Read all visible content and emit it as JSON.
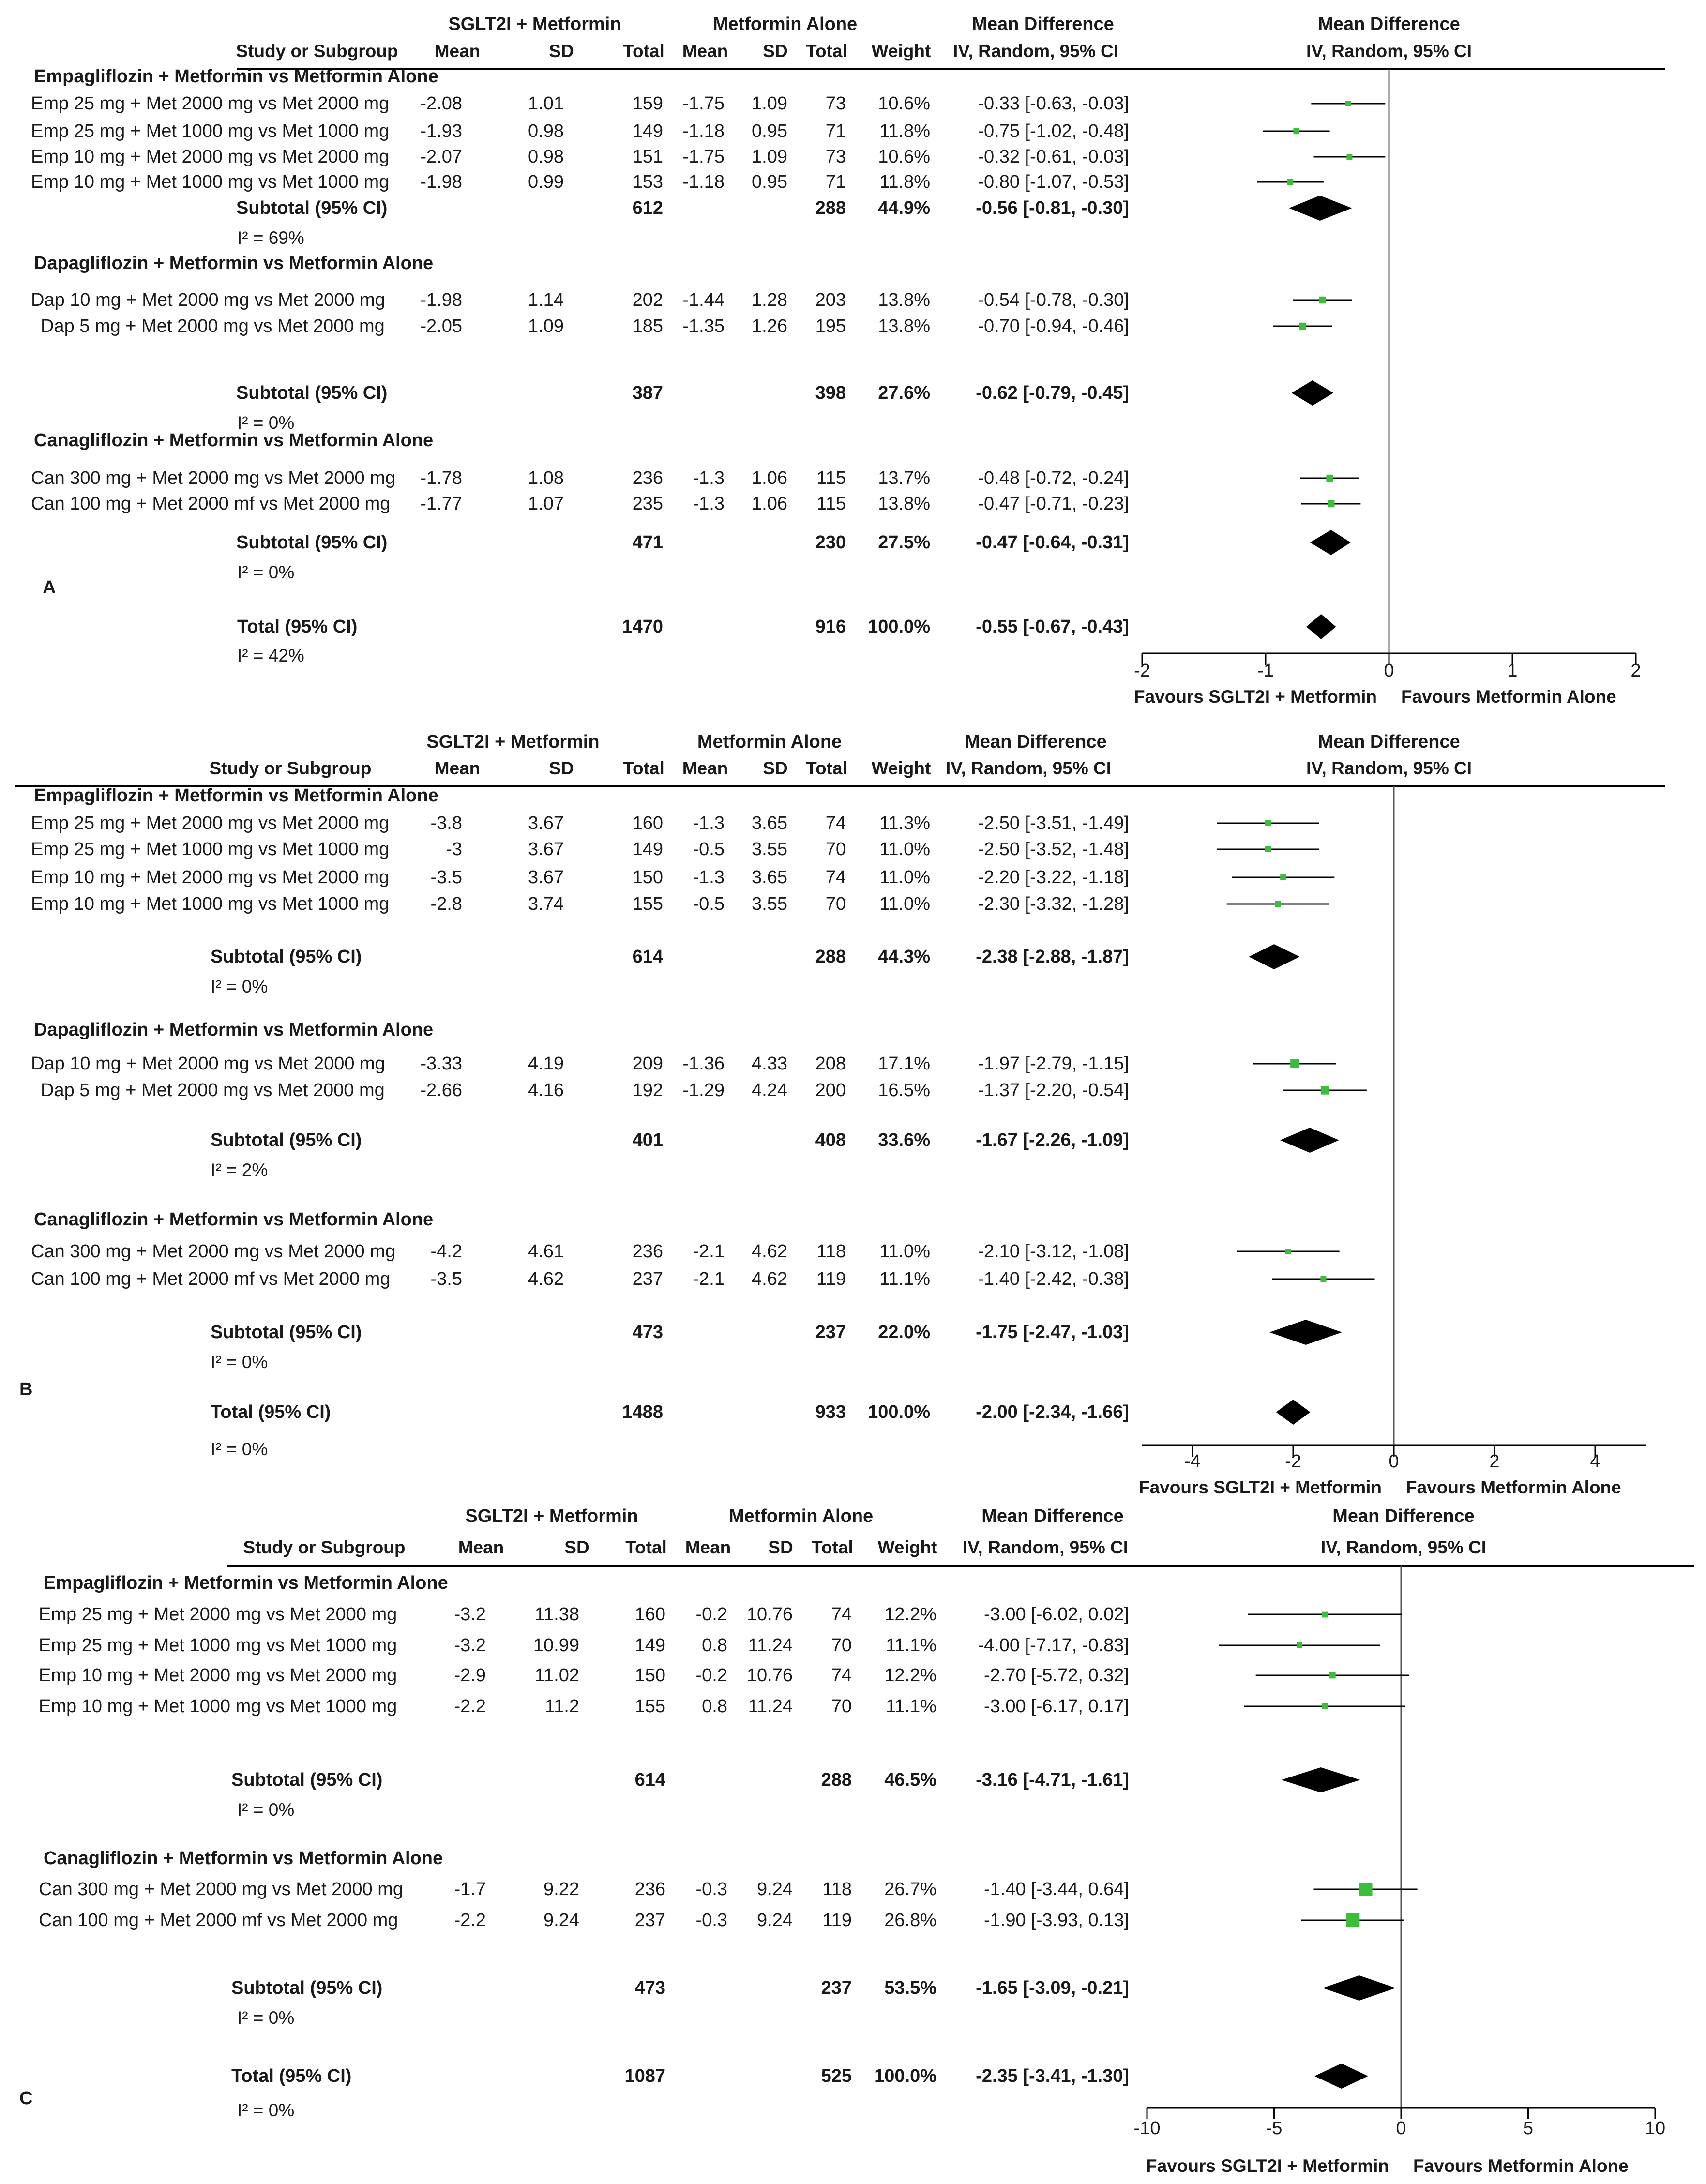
{
  "headers": {
    "group1": "SGLT2I + Metformin",
    "group2": "Metformin Alone",
    "effect": "Mean Difference",
    "method": "IV, Random, 95% CI",
    "study": "Study or Subgroup",
    "mean": "Mean",
    "sd": "SD",
    "total": "Total",
    "weight": "Weight"
  },
  "colors": {
    "marker": "#3bbf3b",
    "diamond": "#000000",
    "line": "#000000"
  },
  "chart_data": [
    {
      "type": "forest",
      "panel_label": "A",
      "xlim": [
        -2,
        2
      ],
      "ticks": [
        -2,
        -1,
        0,
        1,
        2
      ],
      "tick_labels": [
        "-2",
        "-1",
        "0",
        "1",
        "2"
      ],
      "favours_left": "Favours SGLT2I + Metformin",
      "favours_right": "Favours Metformin Alone",
      "groups": [
        {
          "title": "Empagliflozin + Metformin vs Metformin Alone",
          "studies": [
            {
              "name": "Emp 25 mg + Met 2000 mg vs Met 2000 mg",
              "m1": "-2.08",
              "sd1": "1.01",
              "n1": "159",
              "m2": "-1.75",
              "sd2": "1.09",
              "n2": "73",
              "weight": "10.6%",
              "ci": "-0.33 [-0.63, -0.03]",
              "md": -0.33,
              "lo": -0.63,
              "hi": -0.03
            },
            {
              "name": "Emp 25 mg + Met 1000 mg vs Met 1000 mg",
              "m1": "-1.93",
              "sd1": "0.98",
              "n1": "149",
              "m2": "-1.18",
              "sd2": "0.95",
              "n2": "71",
              "weight": "11.8%",
              "ci": "-0.75 [-1.02, -0.48]",
              "md": -0.75,
              "lo": -1.02,
              "hi": -0.48
            },
            {
              "name": "Emp 10 mg + Met 2000 mg vs Met 2000 mg",
              "m1": "-2.07",
              "sd1": "0.98",
              "n1": "151",
              "m2": "-1.75",
              "sd2": "1.09",
              "n2": "73",
              "weight": "10.6%",
              "ci": "-0.32 [-0.61, -0.03]",
              "md": -0.32,
              "lo": -0.61,
              "hi": -0.03
            },
            {
              "name": "Emp 10 mg + Met 1000 mg vs Met 1000 mg",
              "m1": "-1.98",
              "sd1": "0.99",
              "n1": "153",
              "m2": "-1.18",
              "sd2": "0.95",
              "n2": "71",
              "weight": "11.8%",
              "ci": "-0.80 [-1.07, -0.53]",
              "md": -0.8,
              "lo": -1.07,
              "hi": -0.53
            }
          ],
          "subtotal": {
            "label": "Subtotal (95% CI)",
            "n1": "612",
            "n2": "288",
            "weight": "44.9%",
            "ci": "-0.56 [-0.81, -0.30]",
            "md": -0.56,
            "lo": -0.81,
            "hi": -0.3,
            "i2": "I² = 69%"
          }
        },
        {
          "title": "Dapagliflozin + Metformin vs Metformin Alone",
          "studies": [
            {
              "name": "Dap 10 mg + Met 2000 mg vs Met 2000 mg",
              "m1": "-1.98",
              "sd1": "1.14",
              "n1": "202",
              "m2": "-1.44",
              "sd2": "1.28",
              "n2": "203",
              "weight": "13.8%",
              "ci": "-0.54 [-0.78, -0.30]",
              "md": -0.54,
              "lo": -0.78,
              "hi": -0.3
            },
            {
              "name": "Dap 5 mg + Met 2000 mg vs Met 2000 mg",
              "m1": "-2.05",
              "sd1": "1.09",
              "n1": "185",
              "m2": "-1.35",
              "sd2": "1.26",
              "n2": "195",
              "weight": "13.8%",
              "ci": "-0.70 [-0.94, -0.46]",
              "md": -0.7,
              "lo": -0.94,
              "hi": -0.46
            }
          ],
          "subtotal": {
            "label": "Subtotal (95% CI)",
            "n1": "387",
            "n2": "398",
            "weight": "27.6%",
            "ci": "-0.62 [-0.79, -0.45]",
            "md": -0.62,
            "lo": -0.79,
            "hi": -0.45,
            "i2": "I² = 0%"
          }
        },
        {
          "title": "Canagliflozin + Metformin vs Metformin Alone",
          "studies": [
            {
              "name": "Can 300 mg + Met 2000 mg vs Met 2000 mg",
              "m1": "-1.78",
              "sd1": "1.08",
              "n1": "236",
              "m2": "-1.3",
              "sd2": "1.06",
              "n2": "115",
              "weight": "13.7%",
              "ci": "-0.48 [-0.72, -0.24]",
              "md": -0.48,
              "lo": -0.72,
              "hi": -0.24
            },
            {
              "name": "Can 100 mg + Met 2000 mf vs Met 2000 mg",
              "m1": "-1.77",
              "sd1": "1.07",
              "n1": "235",
              "m2": "-1.3",
              "sd2": "1.06",
              "n2": "115",
              "weight": "13.8%",
              "ci": "-0.47 [-0.71, -0.23]",
              "md": -0.47,
              "lo": -0.71,
              "hi": -0.23
            }
          ],
          "subtotal": {
            "label": "Subtotal (95% CI)",
            "n1": "471",
            "n2": "230",
            "weight": "27.5%",
            "ci": "-0.47 [-0.64, -0.31]",
            "md": -0.47,
            "lo": -0.64,
            "hi": -0.31,
            "i2": "I² = 0%"
          }
        }
      ],
      "total": {
        "label": "Total (95% CI)",
        "n1": "1470",
        "n2": "916",
        "weight": "100.0%",
        "ci": "-0.55 [-0.67, -0.43]",
        "md": -0.55,
        "lo": -0.67,
        "hi": -0.43,
        "i2": "I² = 42%"
      }
    },
    {
      "type": "forest",
      "panel_label": "B",
      "xlim": [
        -5,
        5
      ],
      "ticks": [
        -4,
        -2,
        0,
        2,
        4
      ],
      "tick_labels": [
        "-4",
        "-2",
        "0",
        "2",
        "4"
      ],
      "favours_left": "Favours SGLT2I + Metformin",
      "favours_right": "Favours Metformin Alone",
      "groups": [
        {
          "title": "Empagliflozin + Metformin vs Metformin Alone",
          "studies": [
            {
              "name": "Emp 25 mg + Met 2000 mg vs Met 2000 mg",
              "m1": "-3.8",
              "sd1": "3.67",
              "n1": "160",
              "m2": "-1.3",
              "sd2": "3.65",
              "n2": "74",
              "weight": "11.3%",
              "ci": "-2.50 [-3.51, -1.49]",
              "md": -2.5,
              "lo": -3.51,
              "hi": -1.49
            },
            {
              "name": "Emp 25 mg + Met 1000 mg vs Met 1000 mg",
              "m1": "-3",
              "sd1": "3.67",
              "n1": "149",
              "m2": "-0.5",
              "sd2": "3.55",
              "n2": "70",
              "weight": "11.0%",
              "ci": "-2.50 [-3.52, -1.48]",
              "md": -2.5,
              "lo": -3.52,
              "hi": -1.48
            },
            {
              "name": "Emp 10 mg + Met 2000 mg vs Met 2000 mg",
              "m1": "-3.5",
              "sd1": "3.67",
              "n1": "150",
              "m2": "-1.3",
              "sd2": "3.65",
              "n2": "74",
              "weight": "11.0%",
              "ci": "-2.20 [-3.22, -1.18]",
              "md": -2.2,
              "lo": -3.22,
              "hi": -1.18
            },
            {
              "name": "Emp 10 mg + Met 1000 mg vs Met 1000 mg",
              "m1": "-2.8",
              "sd1": "3.74",
              "n1": "155",
              "m2": "-0.5",
              "sd2": "3.55",
              "n2": "70",
              "weight": "11.0%",
              "ci": "-2.30 [-3.32, -1.28]",
              "md": -2.3,
              "lo": -3.32,
              "hi": -1.28
            }
          ],
          "subtotal": {
            "label": "Subtotal (95% CI)",
            "n1": "614",
            "n2": "288",
            "weight": "44.3%",
            "ci": "-2.38 [-2.88, -1.87]",
            "md": -2.38,
            "lo": -2.88,
            "hi": -1.87,
            "i2": "I² = 0%"
          }
        },
        {
          "title": "Dapagliflozin + Metformin vs Metformin Alone",
          "studies": [
            {
              "name": "Dap 10 mg + Met 2000 mg vs Met 2000 mg",
              "m1": "-3.33",
              "sd1": "4.19",
              "n1": "209",
              "m2": "-1.36",
              "sd2": "4.33",
              "n2": "208",
              "weight": "17.1%",
              "ci": "-1.97 [-2.79, -1.15]",
              "md": -1.97,
              "lo": -2.79,
              "hi": -1.15
            },
            {
              "name": "Dap 5 mg + Met 2000 mg vs Met 2000 mg",
              "m1": "-2.66",
              "sd1": "4.16",
              "n1": "192",
              "m2": "-1.29",
              "sd2": "4.24",
              "n2": "200",
              "weight": "16.5%",
              "ci": "-1.37 [-2.20, -0.54]",
              "md": -1.37,
              "lo": -2.2,
              "hi": -0.54
            }
          ],
          "subtotal": {
            "label": "Subtotal (95% CI)",
            "n1": "401",
            "n2": "408",
            "weight": "33.6%",
            "ci": "-1.67 [-2.26, -1.09]",
            "md": -1.67,
            "lo": -2.26,
            "hi": -1.09,
            "i2": "I² = 2%"
          }
        },
        {
          "title": "Canagliflozin + Metformin vs Metformin Alone",
          "studies": [
            {
              "name": "Can 300 mg + Met 2000 mg vs Met 2000 mg",
              "m1": "-4.2",
              "sd1": "4.61",
              "n1": "236",
              "m2": "-2.1",
              "sd2": "4.62",
              "n2": "118",
              "weight": "11.0%",
              "ci": "-2.10 [-3.12, -1.08]",
              "md": -2.1,
              "lo": -3.12,
              "hi": -1.08
            },
            {
              "name": "Can 100 mg + Met 2000 mf vs Met 2000 mg",
              "m1": "-3.5",
              "sd1": "4.62",
              "n1": "237",
              "m2": "-2.1",
              "sd2": "4.62",
              "n2": "119",
              "weight": "11.1%",
              "ci": "-1.40 [-2.42, -0.38]",
              "md": -1.4,
              "lo": -2.42,
              "hi": -0.38
            }
          ],
          "subtotal": {
            "label": "Subtotal (95% CI)",
            "n1": "473",
            "n2": "237",
            "weight": "22.0%",
            "ci": "-1.75 [-2.47, -1.03]",
            "md": -1.75,
            "lo": -2.47,
            "hi": -1.03,
            "i2": "I² = 0%"
          }
        }
      ],
      "total": {
        "label": "Total (95% CI)",
        "n1": "1488",
        "n2": "933",
        "weight": "100.0%",
        "ci": "-2.00 [-2.34, -1.66]",
        "md": -2.0,
        "lo": -2.34,
        "hi": -1.66,
        "i2": "I² = 0%"
      }
    },
    {
      "type": "forest",
      "panel_label": "C",
      "xlim": [
        -10,
        10
      ],
      "ticks": [
        -10,
        -5,
        0,
        5,
        10
      ],
      "tick_labels": [
        "-10",
        "-5",
        "0",
        "5",
        "10"
      ],
      "favours_left": "Favours SGLT2I + Metformin",
      "favours_right": "Favours Metformin Alone",
      "groups": [
        {
          "title": "Empagliflozin + Metformin vs Metformin Alone",
          "studies": [
            {
              "name": "Emp 25 mg + Met 2000 mg vs Met 2000 mg",
              "m1": "-3.2",
              "sd1": "11.38",
              "n1": "160",
              "m2": "-0.2",
              "sd2": "10.76",
              "n2": "74",
              "weight": "12.2%",
              "ci": "-3.00 [-6.02, 0.02]",
              "md": -3.0,
              "lo": -6.02,
              "hi": 0.02
            },
            {
              "name": "Emp 25 mg + Met 1000 mg vs Met 1000 mg",
              "m1": "-3.2",
              "sd1": "10.99",
              "n1": "149",
              "m2": "0.8",
              "sd2": "11.24",
              "n2": "70",
              "weight": "11.1%",
              "ci": "-4.00 [-7.17, -0.83]",
              "md": -4.0,
              "lo": -7.17,
              "hi": -0.83
            },
            {
              "name": "Emp 10 mg + Met 2000 mg vs Met 2000 mg",
              "m1": "-2.9",
              "sd1": "11.02",
              "n1": "150",
              "m2": "-0.2",
              "sd2": "10.76",
              "n2": "74",
              "weight": "12.2%",
              "ci": "-2.70 [-5.72, 0.32]",
              "md": -2.7,
              "lo": -5.72,
              "hi": 0.32
            },
            {
              "name": "Emp 10 mg + Met 1000 mg vs Met 1000 mg",
              "m1": "-2.2",
              "sd1": "11.2",
              "n1": "155",
              "m2": "0.8",
              "sd2": "11.24",
              "n2": "70",
              "weight": "11.1%",
              "ci": "-3.00 [-6.17, 0.17]",
              "md": -3.0,
              "lo": -6.17,
              "hi": 0.17
            }
          ],
          "subtotal": {
            "label": "Subtotal (95% CI)",
            "n1": "614",
            "n2": "288",
            "weight": "46.5%",
            "ci": "-3.16 [-4.71, -1.61]",
            "md": -3.16,
            "lo": -4.71,
            "hi": -1.61,
            "i2": "I² = 0%"
          }
        },
        {
          "title": "Canagliflozin + Metformin vs Metformin Alone",
          "studies": [
            {
              "name": "Can 300 mg + Met 2000 mg vs Met 2000 mg",
              "m1": "-1.7",
              "sd1": "9.22",
              "n1": "236",
              "m2": "-0.3",
              "sd2": "9.24",
              "n2": "118",
              "weight": "26.7%",
              "ci": "-1.40 [-3.44, 0.64]",
              "md": -1.4,
              "lo": -3.44,
              "hi": 0.64
            },
            {
              "name": "Can 100 mg + Met 2000 mf vs Met 2000 mg",
              "m1": "-2.2",
              "sd1": "9.24",
              "n1": "237",
              "m2": "-0.3",
              "sd2": "9.24",
              "n2": "119",
              "weight": "26.8%",
              "ci": "-1.90 [-3.93, 0.13]",
              "md": -1.9,
              "lo": -3.93,
              "hi": 0.13
            }
          ],
          "subtotal": {
            "label": "Subtotal (95% CI)",
            "n1": "473",
            "n2": "237",
            "weight": "53.5%",
            "ci": "-1.65 [-3.09, -0.21]",
            "md": -1.65,
            "lo": -3.09,
            "hi": -0.21,
            "i2": "I² = 0%"
          }
        }
      ],
      "total": {
        "label": "Total (95% CI)",
        "n1": "1087",
        "n2": "525",
        "weight": "100.0%",
        "ci": "-2.35 [-3.41, -1.30]",
        "md": -2.35,
        "lo": -3.41,
        "hi": -1.3,
        "i2": "I² = 0%"
      }
    }
  ]
}
